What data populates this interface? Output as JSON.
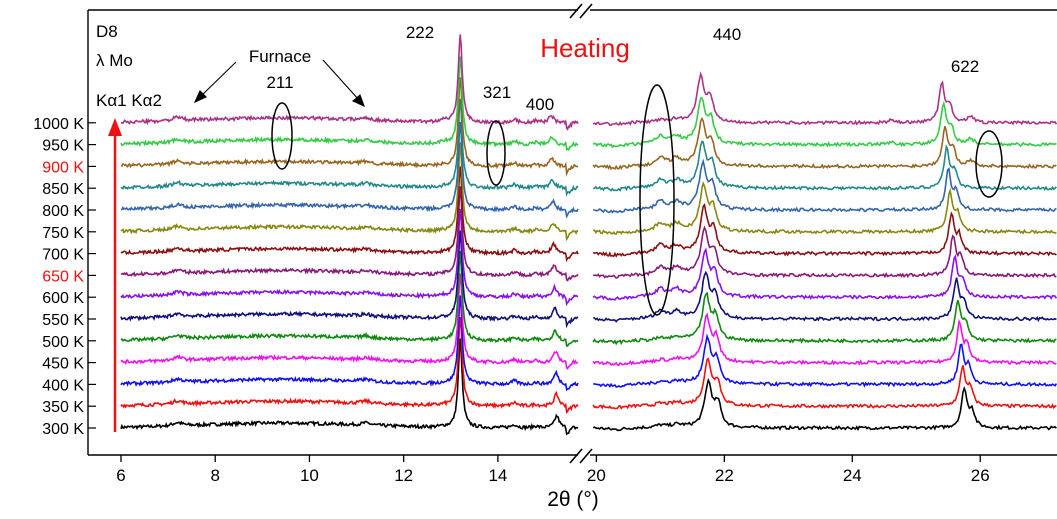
{
  "chart_data": {
    "type": "line",
    "title": "Heating",
    "title_color": "#ee1111",
    "xlabel": "2θ (°)",
    "ylabel": "",
    "grid": false,
    "left_panel": {
      "xlim": [
        5.3,
        15.7
      ],
      "ticks": [
        6,
        8,
        10,
        12,
        14
      ],
      "tick_labels": [
        "6",
        "8",
        "10",
        "12",
        "14"
      ]
    },
    "right_panel": {
      "xlim": [
        19.9,
        27.2
      ],
      "ticks": [
        20,
        22,
        24,
        26
      ],
      "tick_labels": [
        "20",
        "22",
        "24",
        "26"
      ]
    },
    "info_labels": [
      "D8",
      "λ Mo",
      "Kα1 Kα2"
    ],
    "furnace_label": "Furnace",
    "arrow_color": "#ee1111",
    "highlight_color": "#ee1111",
    "highlighted_temperatures": [
      "900 K",
      "650 K"
    ],
    "peak_labels": [
      {
        "label": "222",
        "x": 13.2
      },
      {
        "label": "211",
        "x": 9.4
      },
      {
        "label": "321",
        "x": 14.35
      },
      {
        "label": "400",
        "x": 15.25
      },
      {
        "label": "440",
        "x": 21.7
      },
      {
        "label": "622",
        "x": 25.7
      }
    ],
    "series": [
      {
        "name": "300 K",
        "color": "#000000"
      },
      {
        "name": "350 K",
        "color": "#ee1111"
      },
      {
        "name": "400 K",
        "color": "#1111ee"
      },
      {
        "name": "450 K",
        "color": "#ee11ee"
      },
      {
        "name": "500 K",
        "color": "#118811"
      },
      {
        "name": "550 K",
        "color": "#11117a"
      },
      {
        "name": "600 K",
        "color": "#8811ee"
      },
      {
        "name": "650 K",
        "color": "#8a1a7a"
      },
      {
        "name": "700 K",
        "color": "#881111"
      },
      {
        "name": "750 K",
        "color": "#888811"
      },
      {
        "name": "800 K",
        "color": "#3366aa"
      },
      {
        "name": "850 K",
        "color": "#22888a"
      },
      {
        "name": "900 K",
        "color": "#996622"
      },
      {
        "name": "950 K",
        "color": "#33cc44"
      },
      {
        "name": "1000 K",
        "color": "#aa3388"
      }
    ]
  }
}
